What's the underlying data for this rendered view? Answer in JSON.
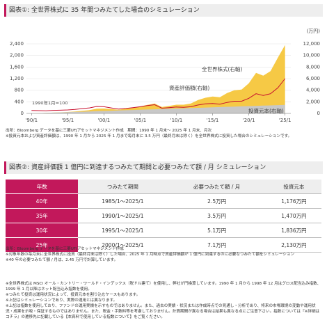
{
  "chart_data": {
    "type": "area-line",
    "title": "図表①: 全世界株式に 35 年間つみたてした場合のシミュレーション",
    "y2_unit": "(万円)",
    "annotation": "1990年1月=100",
    "x": [
      1990,
      1991,
      1992,
      1993,
      1994,
      1995,
      1996,
      1997,
      1998,
      1999,
      2000,
      2001,
      2002,
      2003,
      2004,
      2005,
      2006,
      2007,
      2008,
      2009,
      2010,
      2011,
      2012,
      2013,
      2014,
      2015,
      2016,
      2017,
      2018,
      2019,
      2020,
      2021,
      2022,
      2023,
      2024,
      2025
    ],
    "xlim": [
      1989.3,
      2025.8
    ],
    "xticks": [
      {
        "value": 1990,
        "label": "'90/1"
      },
      {
        "value": 1995,
        "label": "'95/1"
      },
      {
        "value": 2000,
        "label": "'00/1"
      },
      {
        "value": 2005,
        "label": "'05/1"
      },
      {
        "value": 2010,
        "label": "'10/1"
      },
      {
        "value": 2015,
        "label": "'15/1"
      },
      {
        "value": 2020,
        "label": "'20/1"
      },
      {
        "value": 2025,
        "label": "'25/1"
      }
    ],
    "ylim": [
      0,
      2400
    ],
    "yticks": [
      0,
      400,
      800,
      {
        "value": 1200,
        "label": "1,200"
      },
      {
        "value": 1600,
        "label": "1,600"
      },
      {
        "value": 2000,
        "label": "2,000"
      },
      {
        "value": 2400,
        "label": "2,400"
      }
    ],
    "y2lim": [
      0,
      12000
    ],
    "y2ticks": [
      0,
      {
        "value": 2000,
        "label": "2,000"
      },
      {
        "value": 4000,
        "label": "4,000"
      },
      {
        "value": 6000,
        "label": "6,000"
      },
      {
        "value": 8000,
        "label": "8,000"
      },
      {
        "value": 10000,
        "label": "10,000"
      },
      {
        "value": 12000,
        "label": "12,000"
      }
    ],
    "grid": true,
    "series": [
      {
        "name": "資産評価額(右軸)",
        "color": "#f6c945",
        "kind": "area",
        "axis": "y2",
        "values": [
          0,
          40,
          80,
          130,
          180,
          240,
          330,
          450,
          570,
          800,
          840,
          750,
          640,
          800,
          1000,
          1200,
          1480,
          1700,
          1100,
          1300,
          1500,
          1500,
          1700,
          2300,
          2700,
          2900,
          2800,
          3500,
          4000,
          4100,
          5200,
          7000,
          6500,
          7300,
          9600,
          11800
        ]
      },
      {
        "name": "投資元本(右軸)",
        "color": "#c8c8c8",
        "kind": "area",
        "axis": "y2",
        "values": [
          0,
          42,
          84,
          126,
          168,
          210,
          252,
          294,
          336,
          378,
          420,
          462,
          504,
          546,
          588,
          630,
          672,
          714,
          756,
          798,
          840,
          882,
          924,
          966,
          1008,
          1050,
          1092,
          1134,
          1176,
          1218,
          1260,
          1302,
          1344,
          1386,
          1428,
          1470
        ]
      },
      {
        "name": "全世界株式(右軸)",
        "color": "#c8102e",
        "kind": "line",
        "values": [
          100,
          95,
          90,
          105,
          110,
          120,
          140,
          165,
          190,
          240,
          230,
          190,
          150,
          170,
          200,
          230,
          270,
          300,
          180,
          200,
          220,
          210,
          230,
          290,
          330,
          340,
          320,
          380,
          420,
          420,
          520,
          680,
          620,
          680,
          880,
          1200
        ]
      }
    ]
  },
  "chart_notes": [
    "出所：Bloomberg データを基に三菱UFJアセットマネジメント作成　期間：1990 年 1 月末～ 2025 年 1 月末、月次",
    "※投資元本および資産評価額は、1990 年 1 月から 2025 年 1 月まで毎月末に 3.5 万円（最終月末は除く）を全世界株式に投資した場合のシミュレーションです。"
  ],
  "table_title": "図表②: 資産評価額 1 億円に到達するつみたて期間と必要つみたて額 / 月 シミュレーション",
  "table": {
    "header": [
      "年数",
      "つみたて期間",
      "必要つみたて額 / 月",
      "投資元本"
    ],
    "rows": [
      [
        "40年",
        "1985/1～2025/1",
        "2.5万円",
        "1,176万円"
      ],
      [
        "35年",
        "1990/1～2025/1",
        "3.5万円",
        "1,470万円"
      ],
      [
        "30年",
        "1995/1～2025/1",
        "5.1万円",
        "1,836万円"
      ],
      [
        "25年",
        "2000/1～2025/1",
        "7.1万円",
        "2,130万円"
      ]
    ]
  },
  "table_notes": [
    "出所：Bloomberg データを基に三菱UFJアセットマネジメント作成",
    "※対象年数の毎月末に全世界株式に投資（最終月末は除く）した場合、2025 年 1 月時点で資産評価額が 1 億円に到達するのに必要なつみたて額をシミュレーション",
    "※40 年の必要つみたて額 / 月は、2.45 万円で計算しています。"
  ],
  "footnotes": [
    "※全世界株式は MSCI オール・カントリー・ワールド・インデックス（税ドル建て）を使用し、弊社が円換算しています。1990 年 1 月から 1998 年 12 月はグロス配当込み指数、1999 年 1 月以降はネット配当込み指数を使用。",
    "※つみたて投資は運用状況によって、投資元本を割り込むケースもあります。",
    "※上記はシミュレーションであり、実際の運用とは異なります。",
    "※上記は指数を使用しており、ファンドの運用実績を示すものではありません。また、過去の実績・状況または作成時点での見通し・分析であり、将来の市場環境の変動や運用状況・成果を示唆・保証するものではありません。また、税金・手数料等を考慮しておりません。計算期間が異なる場合は結果も異なる点にご注意下さい。指数については『※詳細はコチラ』の遷移先に記載している【本資料で使用している指数について】をご覧ください。"
  ]
}
